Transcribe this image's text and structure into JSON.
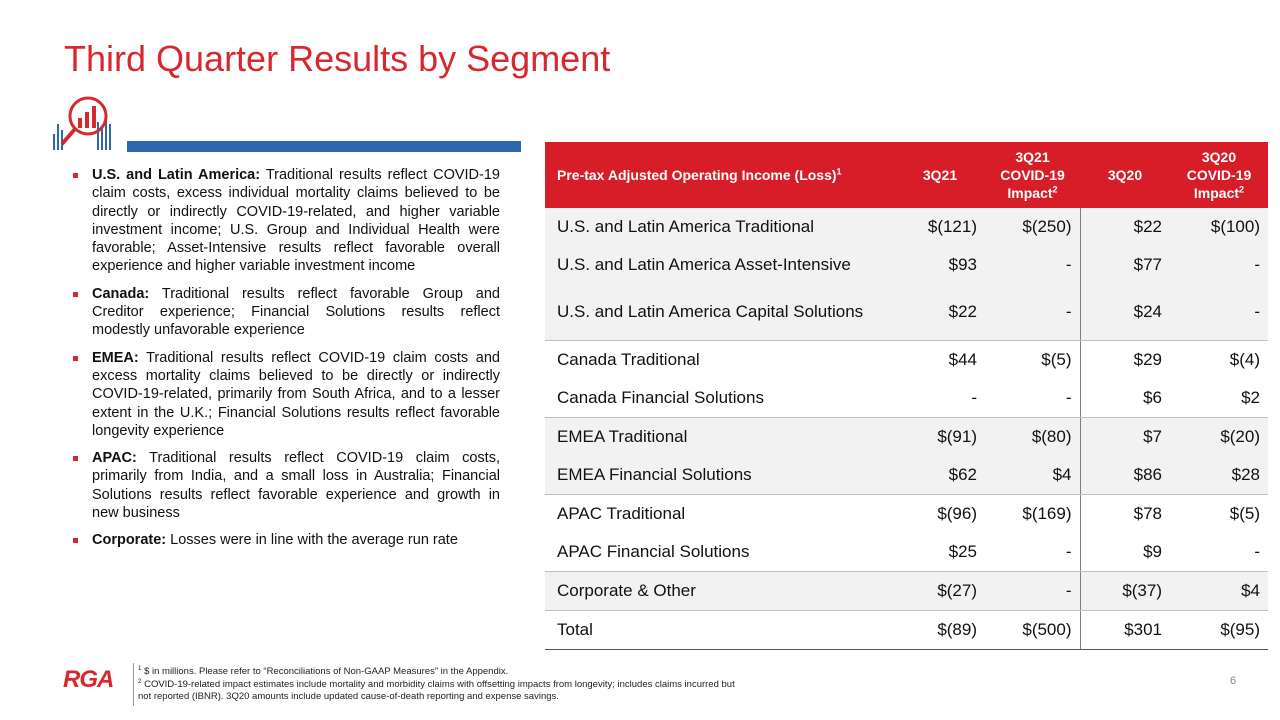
{
  "title": "Third Quarter Results by Segment",
  "bullets": [
    {
      "label": "U.S. and Latin America:",
      "text": "Traditional results reflect COVID-19 claim costs, excess individual mortality claims believed to be directly or indirectly COVID-19-related, and higher variable investment income; U.S. Group and Individual Health were favorable; Asset-Intensive results reflect favorable overall experience and higher variable investment income"
    },
    {
      "label": "Canada:",
      "text": "Traditional results reflect favorable Group and Creditor experience; Financial Solutions results reflect modestly unfavorable experience"
    },
    {
      "label": "EMEA:",
      "text": "Traditional results reflect COVID-19 claim costs and excess mortality claims believed to be directly or indirectly COVID-19-related, primarily from South Africa, and to a lesser extent in the U.K.; Financial Solutions results reflect favorable longevity experience"
    },
    {
      "label": "APAC:",
      "text": "Traditional results reflect COVID-19 claim costs, primarily from India, and a small loss in Australia; Financial Solutions results reflect favorable experience and growth in new business"
    },
    {
      "label": "Corporate:",
      "text": "Losses were in line with the average run rate"
    }
  ],
  "table": {
    "header": [
      {
        "text": "Pre-tax Adjusted Operating Income (Loss)",
        "sup": "1"
      },
      {
        "text": "3Q21"
      },
      {
        "text": "3Q21 COVID-19 Impact",
        "sup": "2"
      },
      {
        "text": "3Q20"
      },
      {
        "text": "3Q20 COVID-19 Impact",
        "sup": "2"
      }
    ],
    "groups": [
      [
        [
          "U.S. and Latin America Traditional",
          "$(121)",
          "$(250)",
          "$22",
          "$(100)"
        ],
        [
          "U.S. and Latin America Asset-Intensive",
          "$93",
          "-",
          "$77",
          "-"
        ],
        [
          "U.S. and Latin America Capital Solutions",
          "$22",
          "-",
          "$24",
          "-"
        ]
      ],
      [
        [
          "Canada Traditional",
          "$44",
          "$(5)",
          "$29",
          "$(4)"
        ],
        [
          "Canada Financial Solutions",
          "-",
          "-",
          "$6",
          "$2"
        ]
      ],
      [
        [
          "EMEA Traditional",
          "$(91)",
          "$(80)",
          "$7",
          "$(20)"
        ],
        [
          "EMEA Financial Solutions",
          "$62",
          "$4",
          "$86",
          "$28"
        ]
      ],
      [
        [
          "APAC Traditional",
          "$(96)",
          "$(169)",
          "$78",
          "$(5)"
        ],
        [
          "APAC Financial Solutions",
          "$25",
          "-",
          "$9",
          "-"
        ]
      ],
      [
        [
          "Corporate & Other",
          "$(27)",
          "-",
          "$(37)",
          "$4"
        ]
      ],
      [
        [
          "Total",
          "$(89)",
          "$(500)",
          "$301",
          "$(95)"
        ]
      ]
    ]
  },
  "footnotes": [
    {
      "sup": "1",
      "text": "$ in millions. Please refer to “Reconciliations of Non-GAAP Measures” in the Appendix."
    },
    {
      "sup": "2",
      "text": "COVID-19-related impact estimates include mortality and morbidity claims with offsetting impacts from longevity; includes claims incurred but not reported (IBNR). 3Q20 amounts include updated cause-of-death reporting and expense savings."
    }
  ],
  "logo": "RGA",
  "page_number": "6"
}
